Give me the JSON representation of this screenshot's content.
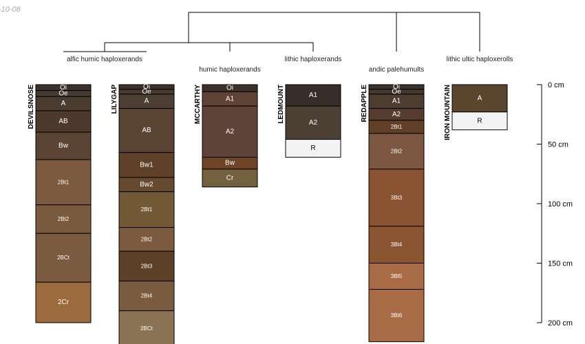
{
  "date_stamp": "-10-08",
  "taxa": [
    "alfic humic haploxerands",
    "humic haploxerands",
    "lithic haploxerands",
    "andic palehumults",
    "lithic ultic haploxerolls"
  ],
  "profiles": [
    {
      "name": "DEVILSNOSE",
      "taxon": "alfic humic haploxerands",
      "horizons": [
        {
          "label": "Oi",
          "top": 0,
          "bottom": 5,
          "color": "#3c3128"
        },
        {
          "label": "Oe",
          "top": 5,
          "bottom": 10,
          "color": "#463a30"
        },
        {
          "label": "A",
          "top": 10,
          "bottom": 22,
          "color": "#4a3c30"
        },
        {
          "label": "AB",
          "top": 22,
          "bottom": 40,
          "color": "#4d3a2c"
        },
        {
          "label": "Bw",
          "top": 40,
          "bottom": 63,
          "color": "#5b4433"
        },
        {
          "label": "2Bt1",
          "top": 63,
          "bottom": 101,
          "color": "#7c5a3d"
        },
        {
          "label": "2Bt2",
          "top": 101,
          "bottom": 125,
          "color": "#7a5a3e"
        },
        {
          "label": "2BCt",
          "top": 125,
          "bottom": 166,
          "color": "#7b5b40"
        },
        {
          "label": "2Cr",
          "top": 166,
          "bottom": 200,
          "color": "#9c6b3d"
        }
      ]
    },
    {
      "name": "LILYGAP",
      "taxon": "alfic humic haploxerands",
      "horizons": [
        {
          "label": "Oi",
          "top": 0,
          "bottom": 4,
          "color": "#3d3029"
        },
        {
          "label": "Oe",
          "top": 4,
          "bottom": 8,
          "color": "#463a31"
        },
        {
          "label": "A",
          "top": 8,
          "bottom": 20,
          "color": "#4c3f33"
        },
        {
          "label": "AB",
          "top": 20,
          "bottom": 57,
          "color": "#5a4333"
        },
        {
          "label": "Bw1",
          "top": 57,
          "bottom": 78,
          "color": "#5f4129"
        },
        {
          "label": "Bw2",
          "top": 78,
          "bottom": 90,
          "color": "#664a2f"
        },
        {
          "label": "2Bt1",
          "top": 90,
          "bottom": 120,
          "color": "#735a36"
        },
        {
          "label": "2Bt2",
          "top": 120,
          "bottom": 140,
          "color": "#7b5a3d"
        },
        {
          "label": "2Bt3",
          "top": 140,
          "bottom": 165,
          "color": "#5c4128"
        },
        {
          "label": "2Bt4",
          "top": 165,
          "bottom": 190,
          "color": "#7a5b40"
        },
        {
          "label": "2BCt",
          "top": 190,
          "bottom": 220,
          "color": "#8b7455"
        }
      ]
    },
    {
      "name": "MCCARTHY",
      "taxon": "humic haploxerands",
      "horizons": [
        {
          "label": "Oi",
          "top": 0,
          "bottom": 6,
          "color": "#3c3028"
        },
        {
          "label": "A1",
          "top": 6,
          "bottom": 18,
          "color": "#5f4335"
        },
        {
          "label": "A2",
          "top": 18,
          "bottom": 61,
          "color": "#5e4338"
        },
        {
          "label": "Bw",
          "top": 61,
          "bottom": 71,
          "color": "#6d4526"
        },
        {
          "label": "Cr",
          "top": 71,
          "bottom": 86,
          "color": "#72603f"
        }
      ]
    },
    {
      "name": "LEDMOUNT",
      "taxon": "lithic haploxerands",
      "horizons": [
        {
          "label": "A1",
          "top": 0,
          "bottom": 18,
          "color": "#372d29"
        },
        {
          "label": "A2",
          "top": 18,
          "bottom": 46,
          "color": "#4d4034"
        },
        {
          "label": "R",
          "top": 46,
          "bottom": 61,
          "color": "#f3f3f3"
        }
      ]
    },
    {
      "name": "REDAPPLE",
      "taxon": "andic palehumults",
      "horizons": [
        {
          "label": "Oi",
          "top": 0,
          "bottom": 4,
          "color": "#3b302b"
        },
        {
          "label": "Oe",
          "top": 4,
          "bottom": 8,
          "color": "#443830"
        },
        {
          "label": "A1",
          "top": 8,
          "bottom": 20,
          "color": "#4d3d31"
        },
        {
          "label": "A2",
          "top": 20,
          "bottom": 30,
          "color": "#553c2c"
        },
        {
          "label": "2Bt1",
          "top": 30,
          "bottom": 41,
          "color": "#623f27"
        },
        {
          "label": "2Bt2",
          "top": 41,
          "bottom": 71,
          "color": "#7c5641"
        },
        {
          "label": "3Bt3",
          "top": 71,
          "bottom": 119,
          "color": "#8a5331"
        },
        {
          "label": "3Bt4",
          "top": 119,
          "bottom": 150,
          "color": "#8a5632"
        },
        {
          "label": "3Bt5",
          "top": 150,
          "bottom": 172,
          "color": "#a86b45"
        },
        {
          "label": "3Bt6",
          "top": 172,
          "bottom": 216,
          "color": "#a86b46"
        }
      ]
    },
    {
      "name": "IRON MOUNTAIN",
      "taxon": "lithic ultic haploxerolls",
      "horizons": [
        {
          "label": "A",
          "top": 0,
          "bottom": 23,
          "color": "#5c452e"
        },
        {
          "label": "R",
          "top": 23,
          "bottom": 38,
          "color": "#f3f3f3"
        }
      ]
    }
  ],
  "depth_axis": {
    "unit": "cm",
    "max": 200,
    "ticks": [
      {
        "value": 0,
        "label": "0 cm"
      },
      {
        "value": 50,
        "label": "50 cm"
      },
      {
        "value": 100,
        "label": "100 cm"
      },
      {
        "value": 150,
        "label": "150 cm"
      },
      {
        "value": 200,
        "label": "200 cm"
      }
    ]
  }
}
